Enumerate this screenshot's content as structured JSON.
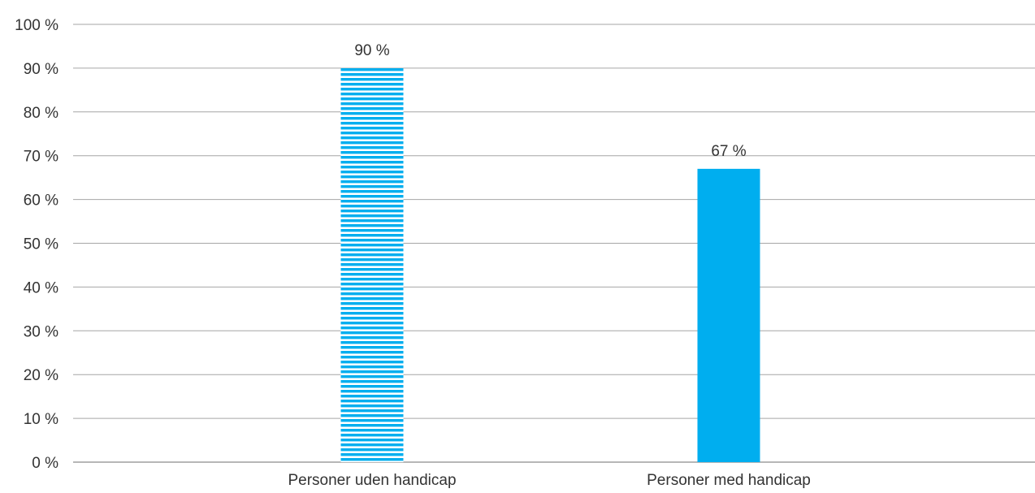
{
  "chart_data": {
    "type": "bar",
    "categories": [
      "Personer uden handicap",
      "Personer med handicap"
    ],
    "values": [
      90,
      67
    ],
    "data_labels": [
      "90 %",
      "67 %"
    ],
    "ylim": [
      0,
      100
    ],
    "y_ticks": [
      0,
      10,
      20,
      30,
      40,
      50,
      60,
      70,
      80,
      90,
      100
    ],
    "y_tick_labels": [
      "0 %",
      "10 %",
      "20 %",
      "30 %",
      "40 %",
      "50 %",
      "60 %",
      "70 %",
      "80 %",
      "90 %",
      "100 %"
    ],
    "title": "",
    "xlabel": "",
    "ylabel": "",
    "grid": true,
    "legend": "none",
    "bar_styles": [
      "horizontal-stripes",
      "solid"
    ],
    "colors": {
      "bar": "#00aeef",
      "stripe_background": "#ffffff",
      "grid": "#a6a6a6",
      "text": "#333333"
    }
  }
}
